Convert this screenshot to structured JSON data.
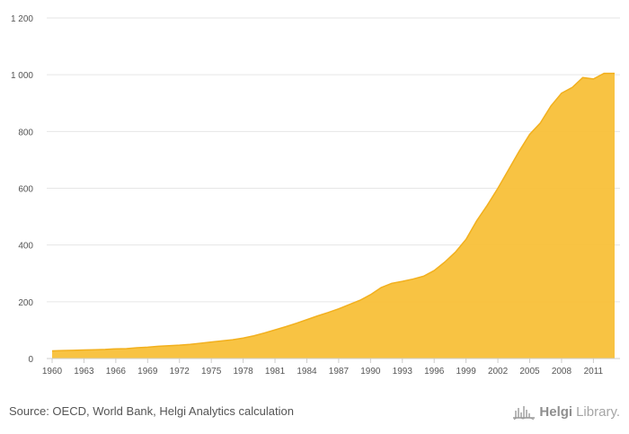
{
  "chart_data": {
    "type": "area",
    "title": "",
    "xlabel": "",
    "ylabel": "",
    "ylim": [
      0,
      1200
    ],
    "yticks": [
      0,
      200,
      400,
      600,
      800,
      1000,
      1200
    ],
    "ytick_labels": [
      "0",
      "200",
      "400",
      "600",
      "800",
      "1 000",
      "1 200"
    ],
    "xtick_labels": [
      "1960",
      "1963",
      "1966",
      "1969",
      "1972",
      "1975",
      "1978",
      "1981",
      "1984",
      "1987",
      "1990",
      "1993",
      "1996",
      "1999",
      "2002",
      "2005",
      "2008",
      "2011"
    ],
    "grid": true,
    "color": "#F8C039",
    "x": [
      1960,
      1961,
      1962,
      1963,
      1964,
      1965,
      1966,
      1967,
      1968,
      1969,
      1970,
      1971,
      1972,
      1973,
      1974,
      1975,
      1976,
      1977,
      1978,
      1979,
      1980,
      1981,
      1982,
      1983,
      1984,
      1985,
      1986,
      1987,
      1988,
      1989,
      1990,
      1991,
      1992,
      1993,
      1994,
      1995,
      1996,
      1997,
      1998,
      1999,
      2000,
      2001,
      2002,
      2003,
      2004,
      2005,
      2006,
      2007,
      2008,
      2009,
      2010,
      2011,
      2012,
      2013
    ],
    "values": [
      27,
      28,
      29,
      30,
      31,
      32,
      34,
      35,
      38,
      40,
      43,
      45,
      47,
      50,
      54,
      58,
      62,
      66,
      72,
      80,
      90,
      101,
      112,
      124,
      137,
      150,
      162,
      175,
      190,
      205,
      225,
      250,
      265,
      272,
      280,
      290,
      310,
      340,
      375,
      420,
      485,
      540,
      600,
      665,
      730,
      790,
      830,
      890,
      935,
      955,
      990,
      985,
      1005,
      1005
    ]
  },
  "footer": {
    "source": "Source: OECD, World Bank, Helgi Analytics calculation",
    "brand_part1": "Helgi",
    "brand_part2": "Library."
  }
}
